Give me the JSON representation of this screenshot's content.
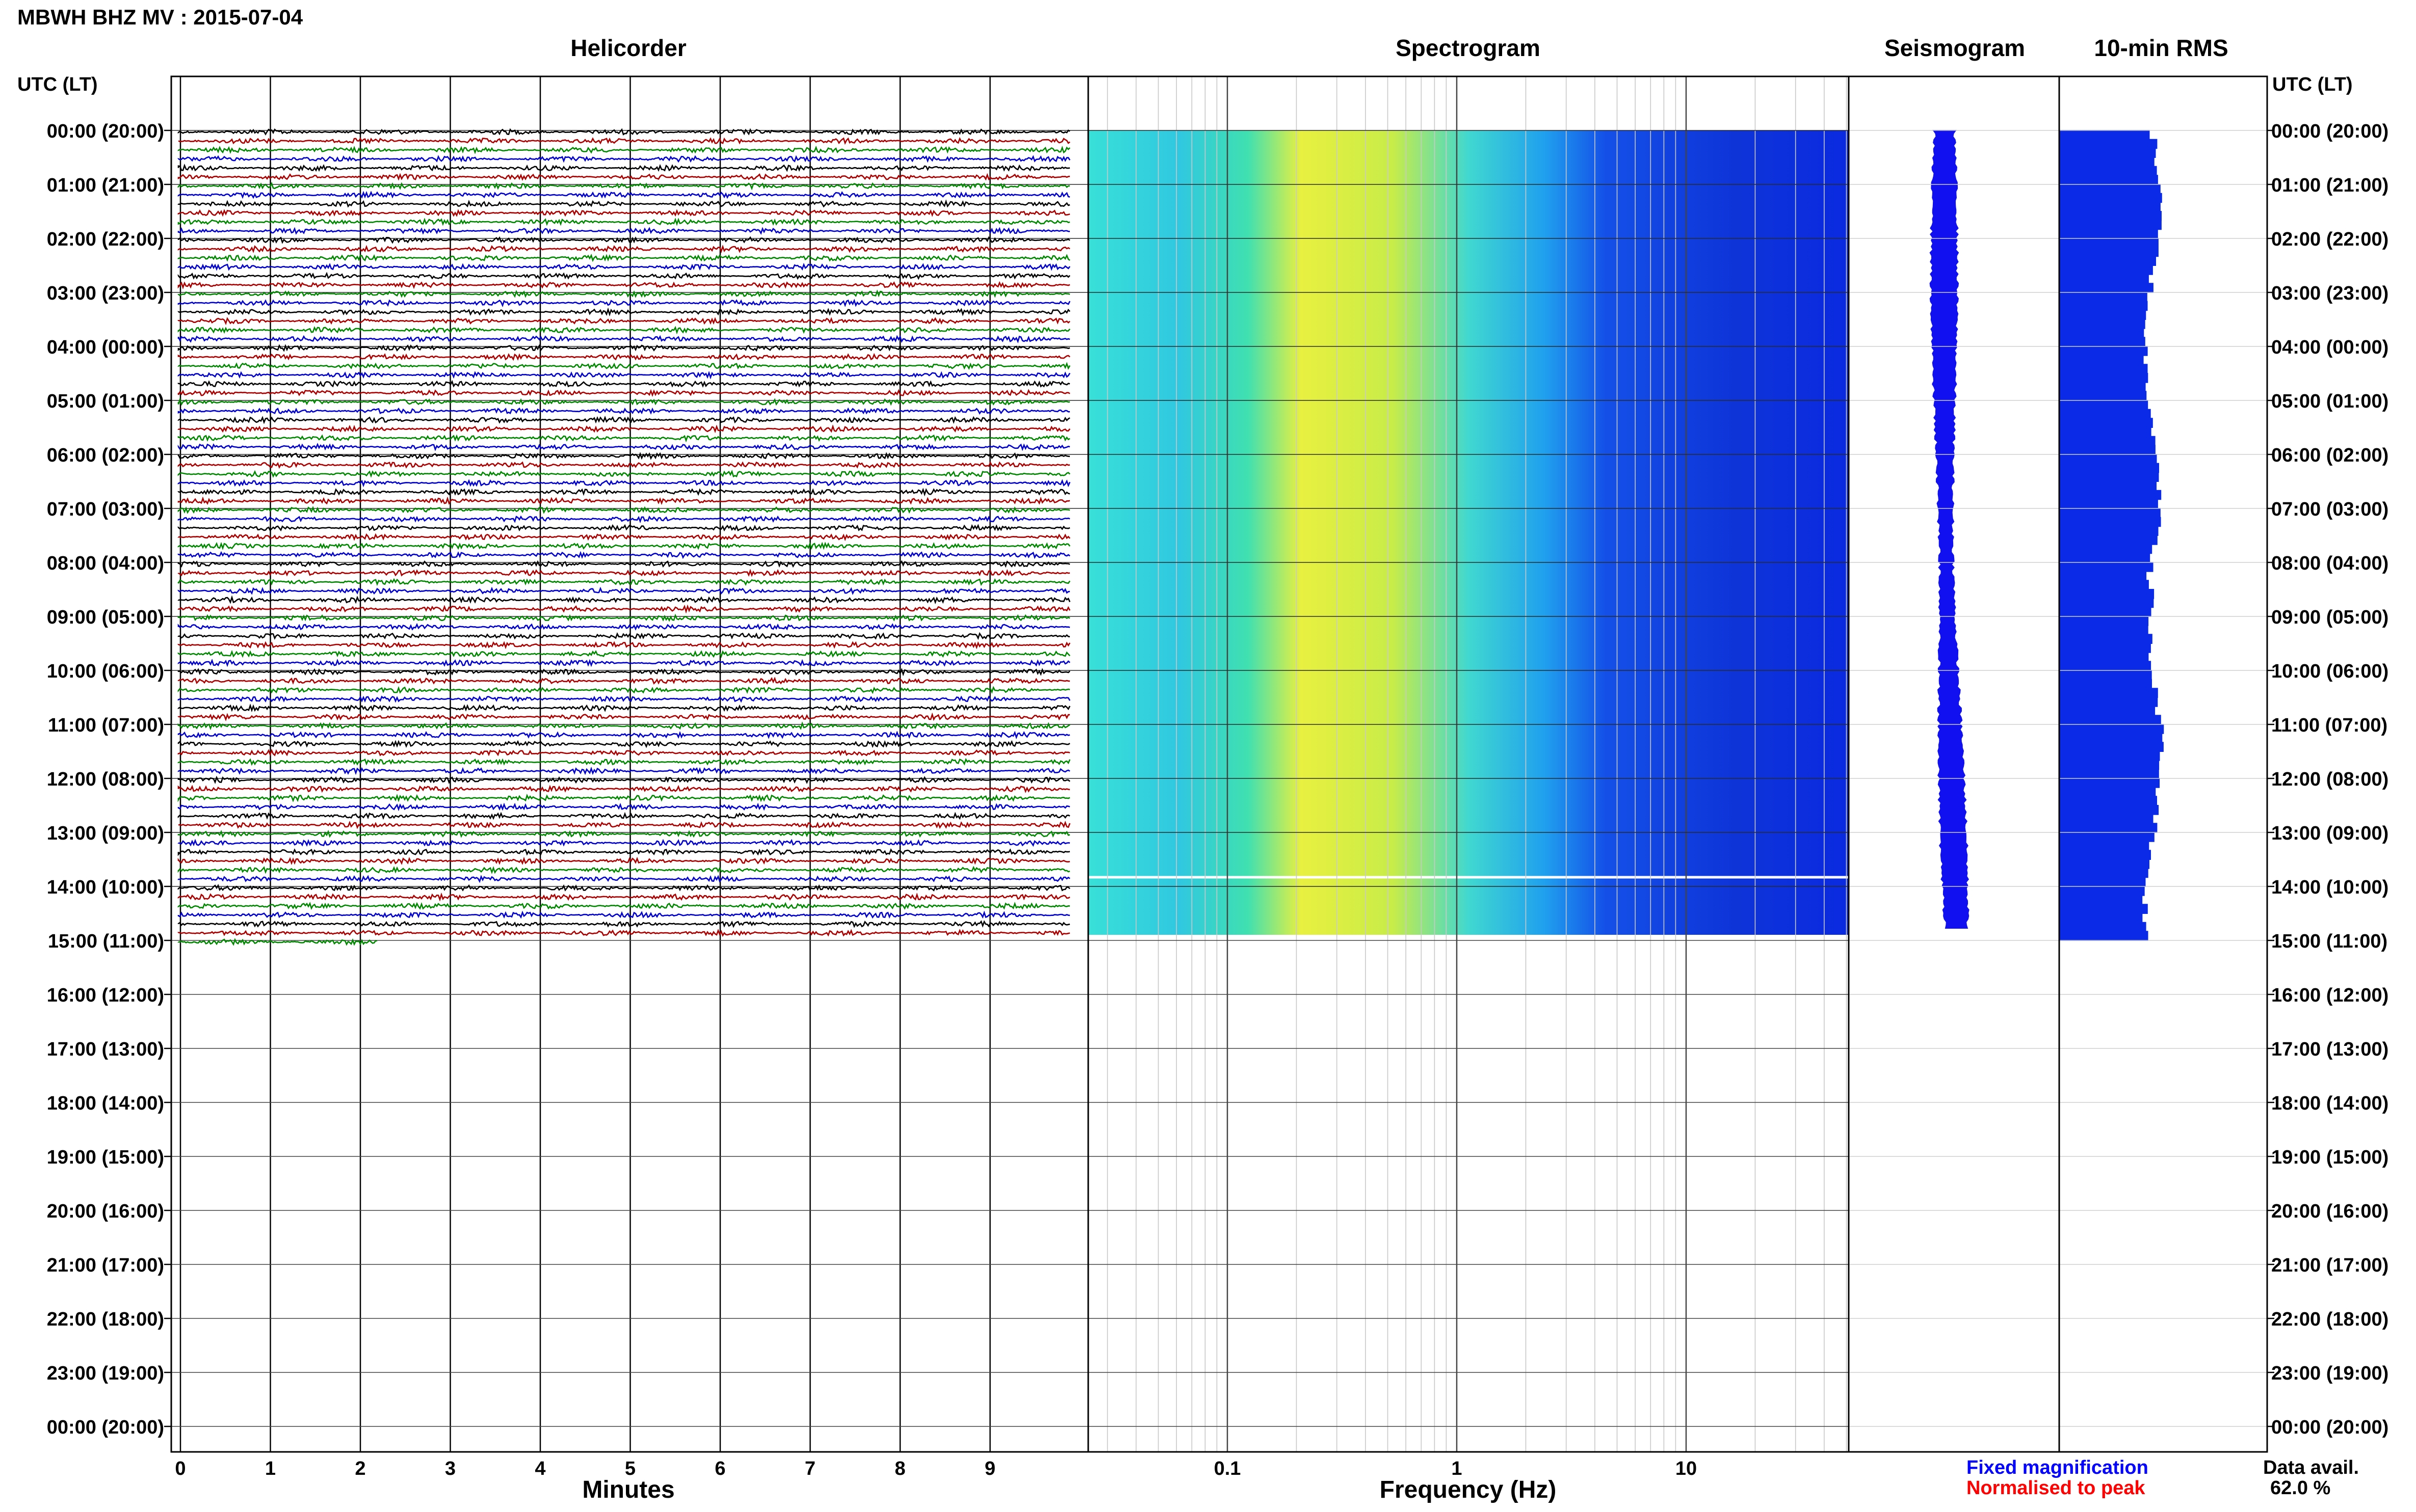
{
  "title": "MBWH BHZ MV : 2015-07-04",
  "panels": {
    "helicorder": "Helicorder",
    "spectrogram": "Spectrogram",
    "seismogram": "Seismogram",
    "rms": "10-min RMS"
  },
  "axis_corner_left": "UTC (LT)",
  "axis_corner_right": "UTC (LT)",
  "time_labels": [
    "00:00 (20:00)",
    "01:00 (21:00)",
    "02:00 (22:00)",
    "03:00 (23:00)",
    "04:00 (00:00)",
    "05:00 (01:00)",
    "06:00 (02:00)",
    "07:00 (03:00)",
    "08:00 (04:00)",
    "09:00 (05:00)",
    "10:00 (06:00)",
    "11:00 (07:00)",
    "12:00 (08:00)",
    "13:00 (09:00)",
    "14:00 (10:00)",
    "15:00 (11:00)",
    "16:00 (12:00)",
    "17:00 (13:00)",
    "18:00 (14:00)",
    "19:00 (15:00)",
    "20:00 (16:00)",
    "21:00 (17:00)",
    "22:00 (18:00)",
    "23:00 (19:00)",
    "00:00 (20:00)"
  ],
  "xlabel_helicorder": "Minutes",
  "xlabel_spectrogram": "Frequency (Hz)",
  "minute_ticks": [
    "0",
    "1",
    "2",
    "3",
    "4",
    "5",
    "6",
    "7",
    "8",
    "9"
  ],
  "freq_ticks": [
    "0.1",
    "1",
    "10"
  ],
  "legend": {
    "fixed": "Fixed magnification",
    "normalised": "Normalised to peak",
    "fixed_color": "#0000ff",
    "normalised_color": "#ff0000"
  },
  "data_avail_label": "Data avail.",
  "data_avail_value": "62.0 %",
  "chart_data": {
    "type": "helicorder",
    "station": "MBWH BHZ MV",
    "date": "2015-07-04",
    "utc_hours_with_data": 15,
    "last_line_minutes": 2.2,
    "trace_colors": [
      "#000000",
      "#aa0000",
      "#008800",
      "#0000cc"
    ],
    "helicorder_xlim": [
      0,
      10
    ],
    "spectrogram_xscale": "log",
    "spectrogram_xlim": [
      0.03,
      50
    ],
    "grid": true
  }
}
